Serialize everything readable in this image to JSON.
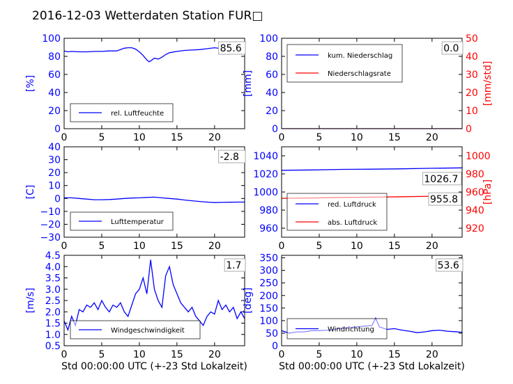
{
  "title": "2016-12-03 Wetterdaten Station FUR□",
  "xlabel": "Std 00:00:00 UTC (+-23 Std Lokalzeit)",
  "colors": {
    "left_axis": "#0000ff",
    "right_axis": "#ff0000",
    "frame": "#000000"
  },
  "chart_data": [
    {
      "type": "line",
      "panel": "top-left",
      "ylabel": "[%]",
      "xlim": [
        0,
        24
      ],
      "ylim": [
        0,
        100
      ],
      "xticks": [
        "0",
        "5",
        "10",
        "15",
        "20"
      ],
      "yticks": [
        "0",
        "20",
        "40",
        "60",
        "80",
        "100"
      ],
      "legend": {
        "position": "lower-center",
        "entries": [
          "rel. Luftfeuchte"
        ]
      },
      "current_value": "85.6",
      "series": [
        {
          "name": "rel. Luftfeuchte",
          "color": "#0000ff",
          "x": [
            0,
            0.5,
            1,
            2,
            3,
            4,
            5,
            6,
            7,
            7.5,
            8,
            8.5,
            9,
            9.5,
            10,
            10.5,
            11,
            11.3,
            11.6,
            12,
            12.5,
            13,
            13.5,
            14,
            15,
            16,
            17,
            18,
            19,
            20,
            21,
            22,
            23,
            24
          ],
          "y": [
            86,
            85,
            85.5,
            85,
            85,
            85.5,
            85.5,
            86,
            86,
            87.5,
            89,
            89.5,
            89.5,
            88,
            85,
            81,
            76,
            74,
            75.5,
            78,
            77,
            79,
            82,
            84,
            85.5,
            86.5,
            87,
            87.5,
            88.5,
            89.5,
            88.5,
            87.5,
            86.5,
            85.6
          ]
        }
      ]
    },
    {
      "type": "line",
      "panel": "top-right",
      "ylabel": "[mm]",
      "ylabel_right": "[mm/std]",
      "xlim": [
        0,
        24
      ],
      "ylim": [
        0,
        100
      ],
      "ylim_right": [
        0,
        50
      ],
      "xticks": [
        "0",
        "5",
        "10",
        "15",
        "20"
      ],
      "yticks": [
        "0",
        "20",
        "40",
        "60",
        "80",
        "100"
      ],
      "yticks_right": [
        "0",
        "10",
        "20",
        "30",
        "40",
        "50"
      ],
      "legend": {
        "position": "upper-left",
        "entries": [
          "kum. Niederschlag",
          "Niederschlagsrate"
        ]
      },
      "current_value": "0.0",
      "series": [
        {
          "name": "kum. Niederschlag",
          "color": "#0000ff",
          "axis": "left",
          "x": [
            0,
            24
          ],
          "y": [
            0,
            0
          ]
        },
        {
          "name": "Niederschlagsrate",
          "color": "#ff0000",
          "axis": "right",
          "x": [
            0,
            24
          ],
          "y": [
            0,
            0
          ]
        }
      ]
    },
    {
      "type": "line",
      "panel": "mid-left",
      "ylabel": "[C]",
      "xlim": [
        0,
        24
      ],
      "ylim": [
        -30,
        40
      ],
      "xticks": [
        "0",
        "5",
        "10",
        "15",
        "20"
      ],
      "yticks": [
        "−30",
        "−20",
        "−10",
        "0",
        "10",
        "20",
        "30",
        "40"
      ],
      "legend": {
        "position": "lower-center",
        "entries": [
          "Lufttemperatur"
        ]
      },
      "current_value": "-2.8",
      "series": [
        {
          "name": "Lufttemperatur",
          "color": "#0000ff",
          "x": [
            0,
            1,
            2,
            3,
            4,
            5,
            6,
            7,
            8,
            9,
            10,
            11,
            12,
            13,
            14,
            15,
            16,
            17,
            18,
            19,
            20,
            21,
            22,
            23,
            24
          ],
          "y": [
            0.5,
            0.5,
            0,
            -0.5,
            -1,
            -1,
            -0.8,
            -0.5,
            0,
            0.3,
            0.5,
            0.8,
            1,
            0.5,
            0,
            -0.5,
            -1.2,
            -1.8,
            -2.3,
            -2.8,
            -3.2,
            -3,
            -2.9,
            -2.8,
            -2.8
          ]
        }
      ]
    },
    {
      "type": "line",
      "panel": "mid-right",
      "ylabel": "",
      "ylabel_right": "[hPa]",
      "xlim": [
        0,
        24
      ],
      "ylim": [
        950,
        1050
      ],
      "ylim_right": [
        910,
        1010
      ],
      "xticks": [
        "0",
        "5",
        "10",
        "15",
        "20"
      ],
      "yticks": [
        "960",
        "980",
        "1000",
        "1020",
        "1040"
      ],
      "yticks_right": [
        "920",
        "940",
        "960",
        "980",
        "1000"
      ],
      "legend": {
        "position": "lower-left",
        "entries": [
          "red. Luftdruck",
          "abs. Luftdruck"
        ]
      },
      "current_values": [
        "1026.7",
        "955.8"
      ],
      "series": [
        {
          "name": "red. Luftdruck",
          "color": "#0000ff",
          "axis": "left",
          "x": [
            0,
            4,
            8,
            12,
            16,
            20,
            24
          ],
          "y": [
            1024.0,
            1024.4,
            1025.0,
            1025.2,
            1025.6,
            1026.2,
            1026.7
          ]
        },
        {
          "name": "abs. Luftdruck",
          "color": "#ff0000",
          "axis": "right",
          "x": [
            0,
            4,
            8,
            12,
            16,
            20,
            24
          ],
          "y": [
            953.0,
            953.4,
            954.0,
            954.3,
            954.8,
            955.3,
            955.8
          ]
        }
      ]
    },
    {
      "type": "line",
      "panel": "bottom-left",
      "ylabel": "[m/s]",
      "xlim": [
        0,
        24
      ],
      "ylim": [
        0.5,
        4.5
      ],
      "xticks": [
        "0",
        "5",
        "10",
        "15",
        "20"
      ],
      "yticks": [
        "0.5",
        "1.0",
        "1.5",
        "2.0",
        "2.5",
        "3.0",
        "3.5",
        "4.0",
        "4.5"
      ],
      "legend": {
        "position": "lower-center",
        "entries": [
          "Windgeschwindigkeit"
        ]
      },
      "current_value": "1.7",
      "series": [
        {
          "name": "Windgeschwindigkeit",
          "color": "#0000ff",
          "x": [
            0,
            0.5,
            1,
            1.5,
            2,
            2.5,
            3,
            3.5,
            4,
            4.5,
            5,
            5.5,
            6,
            6.5,
            7,
            7.5,
            8,
            8.5,
            9,
            9.5,
            10,
            10.5,
            11,
            11.5,
            12,
            12.5,
            13,
            13.5,
            14,
            14.5,
            15,
            15.5,
            16,
            16.5,
            17,
            17.5,
            18,
            18.5,
            19,
            19.5,
            20,
            20.5,
            21,
            21.5,
            22,
            22.5,
            23,
            23.5,
            24
          ],
          "y": [
            1.6,
            1.2,
            1.8,
            1.4,
            2.1,
            2.0,
            2.3,
            2.2,
            2.4,
            2.1,
            2.5,
            2.2,
            2.0,
            2.3,
            2.2,
            2.4,
            2.0,
            1.8,
            2.3,
            2.8,
            3.0,
            3.5,
            2.8,
            4.3,
            3.0,
            2.5,
            2.2,
            3.6,
            4.0,
            3.2,
            2.8,
            2.4,
            2.2,
            2.0,
            2.2,
            1.8,
            1.6,
            1.4,
            1.8,
            2.0,
            1.9,
            2.5,
            2.1,
            2.3,
            2.0,
            2.2,
            1.7,
            2.0,
            1.7
          ]
        }
      ]
    },
    {
      "type": "line",
      "panel": "bottom-right",
      "ylabel": "[deg]",
      "xlim": [
        0,
        24
      ],
      "ylim": [
        0,
        360
      ],
      "xticks": [
        "0",
        "5",
        "10",
        "15",
        "20"
      ],
      "yticks": [
        "0",
        "50",
        "100",
        "150",
        "200",
        "250",
        "300",
        "350"
      ],
      "legend": {
        "position": "lower-left",
        "entries": [
          "Windrichtung"
        ]
      },
      "current_value": "53.6",
      "series": [
        {
          "name": "Windrichtung",
          "color": "#0000ff",
          "x": [
            0,
            1,
            2,
            3,
            4,
            5,
            6,
            7,
            8,
            9,
            10,
            11,
            12,
            12.5,
            13,
            14,
            15,
            16,
            17,
            18,
            19,
            20,
            21,
            22,
            23,
            24
          ],
          "y": [
            60,
            50,
            55,
            55,
            60,
            60,
            62,
            65,
            70,
            72,
            75,
            78,
            80,
            110,
            75,
            65,
            68,
            62,
            58,
            52,
            55,
            60,
            62,
            58,
            56,
            53.6
          ]
        }
      ]
    }
  ]
}
